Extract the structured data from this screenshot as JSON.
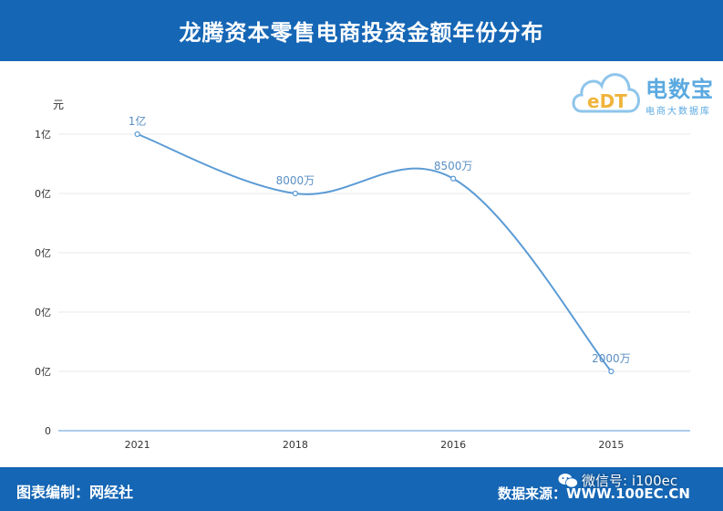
{
  "header": {
    "title": "龙腾资本零售电商投资金额年份分布"
  },
  "logo": {
    "brand": "电数宝",
    "subtitle": "电商大数据库",
    "cloud_text": "eDT"
  },
  "footer": {
    "credit": "图表编制：网经社",
    "source": "数据来源：WWW.100EC.CN",
    "wechat": "微信号: i100ec"
  },
  "colors": {
    "header_bg": "#1566b5",
    "line": "#5b9bd5",
    "label": "#5b8fc4"
  },
  "chart_data": {
    "type": "line",
    "smooth": true,
    "ylabel": "元",
    "categories": [
      "2021",
      "2018",
      "2016",
      "2015"
    ],
    "values": [
      100000000,
      80000000,
      85000000,
      20000000
    ],
    "data_labels": [
      "1亿",
      "8000万",
      "8500万",
      "2000万"
    ],
    "y_ticks": [
      "0",
      "0亿",
      "0亿",
      "0亿",
      "0亿",
      "1亿"
    ],
    "ylim": [
      0,
      100000000
    ],
    "grid": true,
    "legend": false
  }
}
